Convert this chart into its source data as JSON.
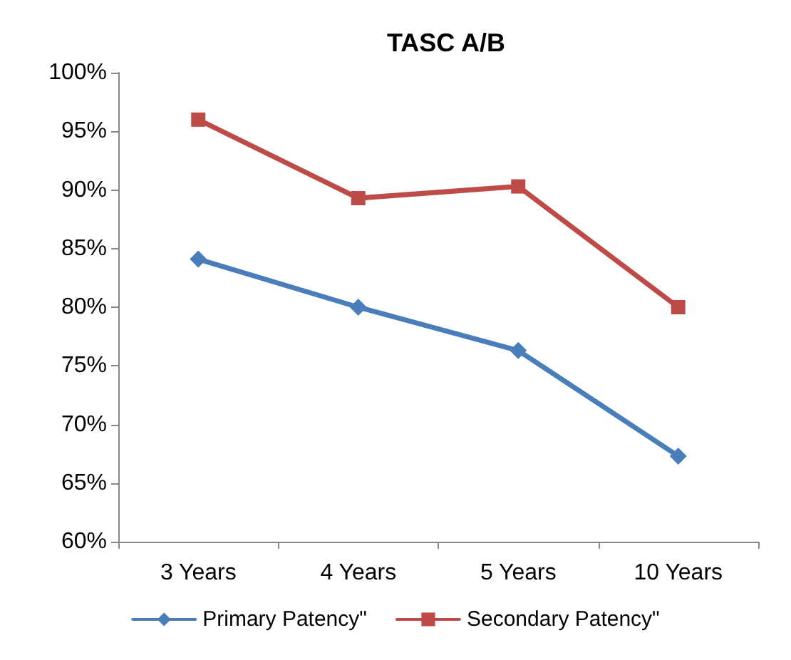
{
  "chart_data": {
    "type": "line",
    "title": "TASC A/B",
    "categories": [
      "3 Years",
      "4 Years",
      "5 Years",
      "10 Years"
    ],
    "series": [
      {
        "name": "Primary Patency\"",
        "color": "#4a7ebb",
        "marker": "diamond",
        "values": [
          84.1,
          80,
          76.3,
          67.3
        ]
      },
      {
        "name": "Secondary Patency\"",
        "color": "#be4b48",
        "marker": "square",
        "values": [
          96,
          89.3,
          90.3,
          80
        ]
      }
    ],
    "ylim": [
      60,
      100
    ],
    "yticks": [
      {
        "value": 60,
        "label": "60%"
      },
      {
        "value": 65,
        "label": "65%"
      },
      {
        "value": 70,
        "label": "70%"
      },
      {
        "value": 75,
        "label": "75%"
      },
      {
        "value": 80,
        "label": "80%"
      },
      {
        "value": 85,
        "label": "85%"
      },
      {
        "value": 90,
        "label": "90%"
      },
      {
        "value": 95,
        "label": "95%"
      },
      {
        "value": 100,
        "label": "100%"
      }
    ],
    "grid": false,
    "legend": "bottom",
    "line_style": "solid"
  }
}
